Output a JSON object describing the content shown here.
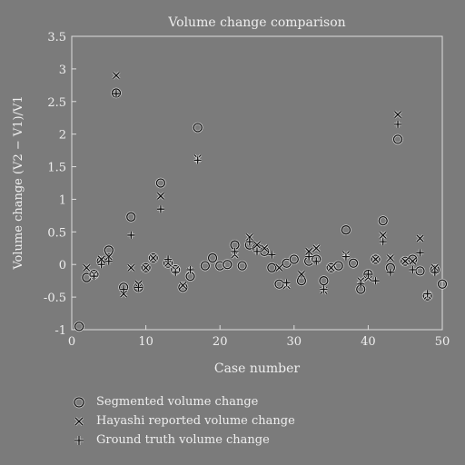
{
  "chart_data": {
    "type": "scatter",
    "title": "Volume change comparison",
    "xlabel": "Case number",
    "ylabel": "Volume change (V2 − V1)/V1",
    "xlim": [
      0,
      50
    ],
    "ylim": [
      -1,
      3.5
    ],
    "xticks": [
      0,
      10,
      20,
      30,
      40,
      50
    ],
    "yticks": [
      3.5,
      3,
      2.5,
      2,
      1.5,
      1,
      0.5,
      0,
      -0.5,
      -1
    ],
    "legend_position": "bottom",
    "grid": false,
    "colors": {
      "background": "#7b7b7b",
      "marker": "#111111",
      "text": "#eeeeee",
      "halo": "#dddddd"
    },
    "series": [
      {
        "name": "Segmented volume change",
        "marker": "circle",
        "x": [
          1,
          2,
          3,
          4,
          5,
          6,
          7,
          8,
          9,
          10,
          11,
          12,
          13,
          14,
          15,
          16,
          17,
          18,
          19,
          20,
          21,
          22,
          23,
          24,
          25,
          26,
          27,
          28,
          29,
          30,
          31,
          32,
          33,
          34,
          35,
          36,
          37,
          38,
          39,
          40,
          41,
          42,
          43,
          44,
          45,
          46,
          47,
          48,
          49,
          50
        ],
        "y": [
          -0.95,
          -0.2,
          -0.15,
          0.05,
          0.22,
          2.63,
          -0.35,
          0.73,
          -0.35,
          -0.05,
          0.1,
          1.25,
          0.02,
          -0.08,
          -0.35,
          -0.18,
          2.1,
          -0.02,
          0.1,
          -0.02,
          0.0,
          0.3,
          -0.02,
          0.3,
          0.25,
          0.2,
          -0.05,
          -0.3,
          0.02,
          0.08,
          -0.25,
          0.05,
          0.08,
          -0.25,
          -0.05,
          -0.02,
          0.53,
          0.02,
          -0.38,
          -0.15,
          0.08,
          0.67,
          -0.05,
          1.92,
          0.05,
          0.08,
          -0.1,
          -0.48,
          -0.08,
          -0.3
        ]
      },
      {
        "name": "Hayashi reported volume change",
        "marker": "x",
        "x": [
          2,
          3,
          4,
          5,
          6,
          7,
          8,
          9,
          10,
          11,
          12,
          13,
          14,
          15,
          16,
          17,
          22,
          24,
          25,
          26,
          28,
          29,
          31,
          32,
          33,
          34,
          35,
          37,
          39,
          40,
          41,
          42,
          43,
          44,
          45,
          46,
          47,
          48,
          49
        ],
        "y": [
          -0.05,
          -0.15,
          0.08,
          0.12,
          2.9,
          -0.45,
          -0.05,
          -0.3,
          -0.05,
          0.1,
          1.05,
          0.02,
          -0.08,
          -0.32,
          -0.1,
          1.63,
          0.15,
          0.42,
          0.3,
          0.25,
          -0.05,
          -0.32,
          -0.15,
          0.2,
          0.25,
          -0.4,
          -0.05,
          0.15,
          -0.25,
          -0.2,
          0.08,
          0.45,
          0.1,
          2.3,
          0.05,
          0.05,
          0.4,
          -0.48,
          -0.05
        ]
      },
      {
        "name": "Ground truth volume change",
        "marker": "plus",
        "x": [
          3,
          4,
          5,
          6,
          7,
          8,
          9,
          12,
          13,
          14,
          16,
          17,
          22,
          24,
          25,
          27,
          29,
          32,
          33,
          34,
          37,
          39,
          40,
          41,
          42,
          43,
          44,
          46,
          47,
          48,
          49
        ],
        "y": [
          -0.18,
          0.0,
          0.05,
          2.62,
          -0.38,
          0.45,
          -0.35,
          0.85,
          0.08,
          -0.12,
          -0.08,
          1.6,
          0.2,
          0.35,
          0.2,
          0.15,
          -0.28,
          0.12,
          0.05,
          -0.38,
          0.12,
          -0.3,
          -0.15,
          -0.25,
          0.35,
          -0.12,
          2.15,
          -0.08,
          0.18,
          -0.45,
          -0.12
        ]
      }
    ]
  }
}
